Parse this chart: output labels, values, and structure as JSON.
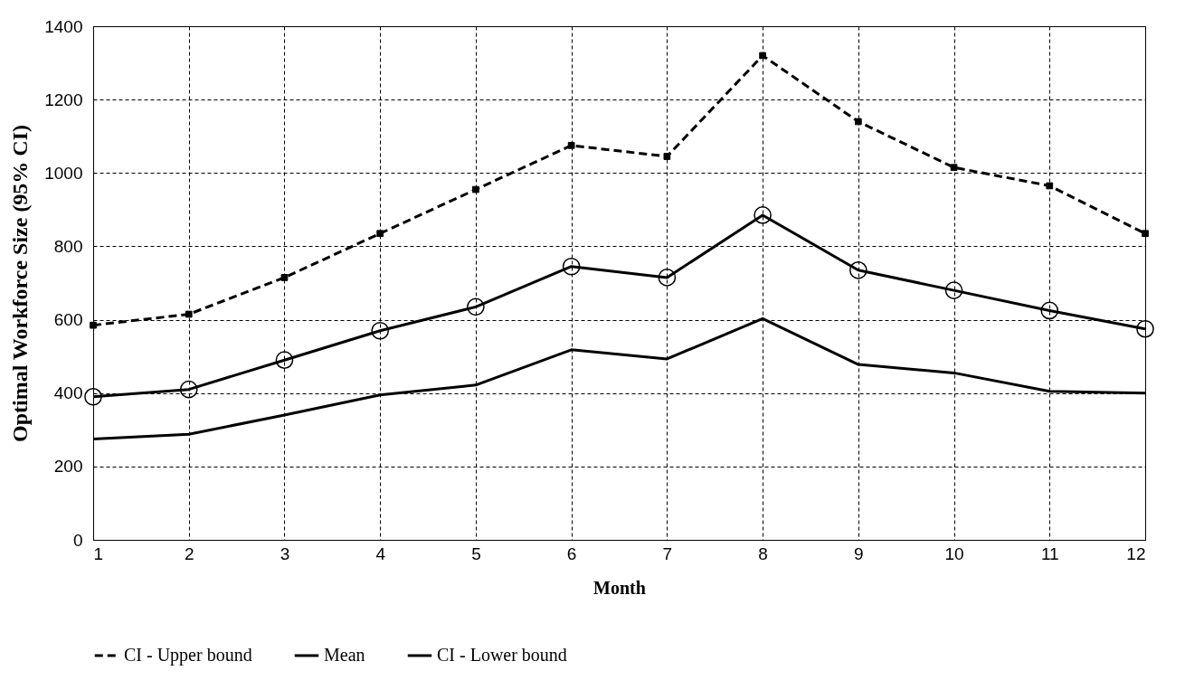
{
  "chart_data": {
    "type": "line",
    "xlabel": "Month",
    "ylabel": "Optimal Workforce Size (95% CI)",
    "x": [
      1,
      2,
      3,
      4,
      5,
      6,
      7,
      8,
      9,
      10,
      11,
      12
    ],
    "series": [
      {
        "name": "CI - Upper bound",
        "color": "#000000",
        "marker": "square",
        "line_style": "dashed",
        "values": [
          585,
          615,
          715,
          835,
          955,
          1075,
          1045,
          1320,
          1140,
          1015,
          965,
          835
        ]
      },
      {
        "name": "Mean",
        "color": "#000000",
        "marker": "circle",
        "line_style": "solid",
        "values": [
          390,
          410,
          490,
          570,
          635,
          745,
          715,
          885,
          735,
          680,
          625,
          575
        ]
      },
      {
        "name": "CI - Lower bound",
        "color": "#000000",
        "marker": "none",
        "line_style": "solid",
        "values": [
          275,
          288,
          340,
          395,
          422,
          518,
          493,
          603,
          478,
          455,
          405,
          400
        ]
      }
    ],
    "xlim": [
      1,
      12
    ],
    "xticks": [
      1,
      2,
      3,
      4,
      5,
      6,
      7,
      8,
      9,
      10,
      11,
      12
    ],
    "ylim": [
      0,
      1400
    ],
    "yticks": [
      0,
      200,
      400,
      600,
      800,
      1000,
      1200,
      1400
    ],
    "grid": true,
    "legend": "bottom"
  }
}
